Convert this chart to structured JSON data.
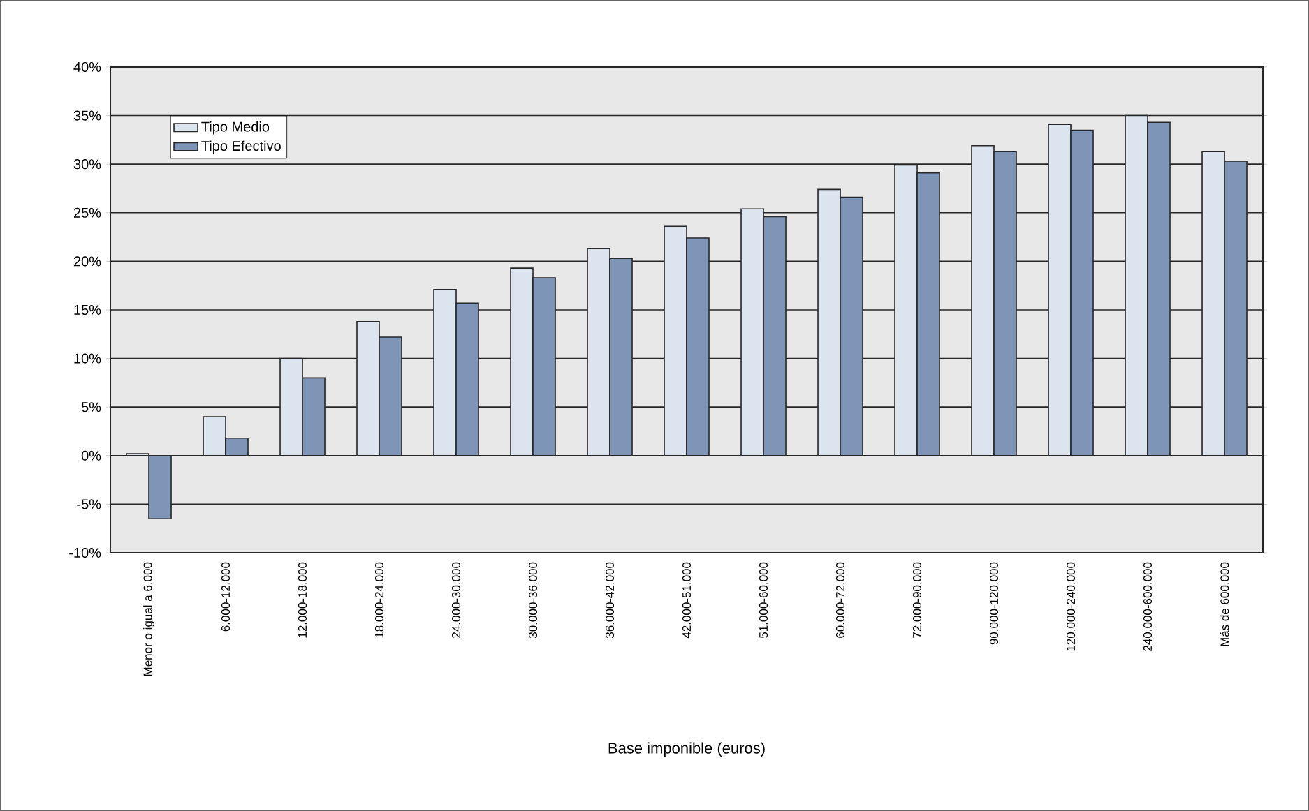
{
  "chart_data": {
    "type": "bar",
    "xlabel": "Base imponible (euros)",
    "categories": [
      "Menor o igual a 6.000",
      "6.000-12.000",
      "12.000-18.000",
      "18.000-24.000",
      "24.000-30.000",
      "30.000-36.000",
      "36.000-42.000",
      "42.000-51.000",
      "51.000-60.000",
      "60.000-72.000",
      "72.000-90.000",
      "90.000-120.000",
      "120.000-240.000",
      "240.000-600.000",
      "Más de 600.000"
    ],
    "series": [
      {
        "name": "Tipo Medio",
        "color": "#dce4f0",
        "values": [
          0.2,
          4.0,
          10.0,
          13.8,
          17.1,
          19.3,
          21.3,
          23.6,
          25.4,
          27.4,
          29.9,
          31.9,
          34.1,
          35.0,
          31.3
        ]
      },
      {
        "name": "Tipo Efectivo",
        "color": "#7f95b8",
        "values": [
          -6.5,
          1.8,
          8.0,
          12.2,
          15.7,
          18.3,
          20.3,
          22.4,
          24.6,
          26.6,
          29.1,
          31.3,
          33.5,
          34.3,
          30.3
        ]
      }
    ],
    "ylim": [
      -10,
      40
    ],
    "yticks": [
      {
        "value": -10,
        "label": "-10%"
      },
      {
        "value": -5,
        "label": "-5%"
      },
      {
        "value": 0,
        "label": "0%"
      },
      {
        "value": 5,
        "label": "5%"
      },
      {
        "value": 10,
        "label": "10%"
      },
      {
        "value": 15,
        "label": "15%"
      },
      {
        "value": 20,
        "label": "20%"
      },
      {
        "value": 25,
        "label": "25%"
      },
      {
        "value": 30,
        "label": "30%"
      },
      {
        "value": 35,
        "label": "35%"
      },
      {
        "value": 40,
        "label": "40%"
      }
    ],
    "grid": "y",
    "legend": "top left"
  }
}
